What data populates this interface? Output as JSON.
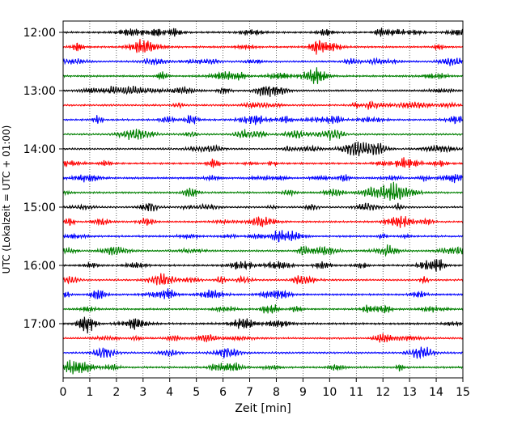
{
  "chart_data": {
    "type": "line",
    "title": "",
    "xlabel": "Zeit  [min]",
    "ylabel": "UTC (Lokalzeit = UTC + 01:00)",
    "xlim": [
      0,
      15
    ],
    "x_ticks": [
      0,
      1,
      2,
      3,
      4,
      5,
      6,
      7,
      8,
      9,
      10,
      11,
      12,
      13,
      14,
      15
    ],
    "y_tick_labels": [
      "12:00",
      "13:00",
      "14:00",
      "15:00",
      "16:00",
      "17:00"
    ],
    "traces_per_hour": 4,
    "trace_minutes": 15,
    "grid": "vertical dotted at every minute",
    "series": [
      {
        "start": "12:00",
        "color": "#000000"
      },
      {
        "start": "12:15",
        "color": "#ff0000"
      },
      {
        "start": "12:30",
        "color": "#0000ff"
      },
      {
        "start": "12:45",
        "color": "#008000"
      },
      {
        "start": "13:00",
        "color": "#000000"
      },
      {
        "start": "13:15",
        "color": "#ff0000"
      },
      {
        "start": "13:30",
        "color": "#0000ff"
      },
      {
        "start": "13:45",
        "color": "#008000"
      },
      {
        "start": "14:00",
        "color": "#000000"
      },
      {
        "start": "14:15",
        "color": "#ff0000"
      },
      {
        "start": "14:30",
        "color": "#0000ff"
      },
      {
        "start": "14:45",
        "color": "#008000"
      },
      {
        "start": "15:00",
        "color": "#000000"
      },
      {
        "start": "15:15",
        "color": "#ff0000"
      },
      {
        "start": "15:30",
        "color": "#0000ff"
      },
      {
        "start": "15:45",
        "color": "#008000"
      },
      {
        "start": "16:00",
        "color": "#000000"
      },
      {
        "start": "16:15",
        "color": "#ff0000"
      },
      {
        "start": "16:30",
        "color": "#0000ff"
      },
      {
        "start": "16:45",
        "color": "#008000"
      },
      {
        "start": "17:00",
        "color": "#000000"
      },
      {
        "start": "17:15",
        "color": "#ff0000"
      },
      {
        "start": "17:30",
        "color": "#0000ff"
      },
      {
        "start": "17:45",
        "color": "#008000"
      }
    ]
  }
}
